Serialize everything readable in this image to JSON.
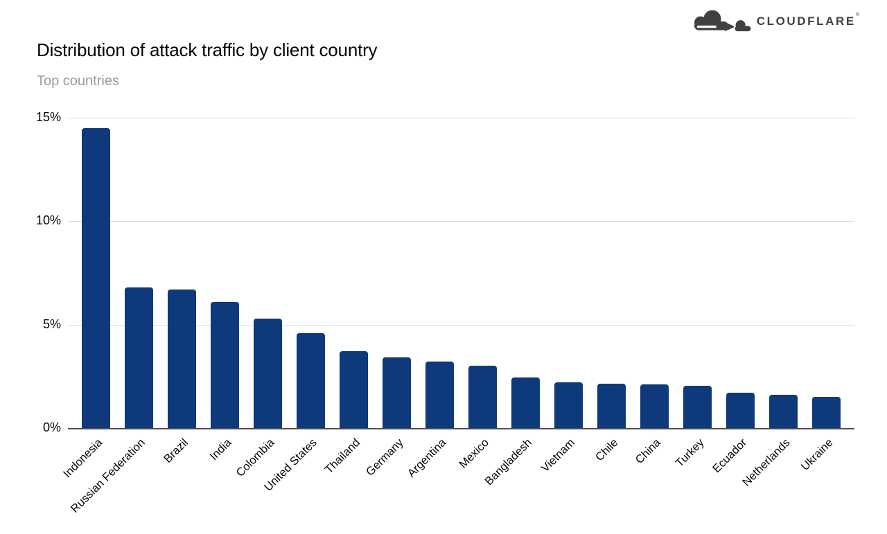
{
  "logo": {
    "brand": "CLOUDFLARE",
    "trademark": "®",
    "color": "#404041"
  },
  "header": {
    "title": "Distribution of attack traffic by client country",
    "subtitle": "Top countries"
  },
  "chart_data": {
    "type": "bar",
    "title": "Distribution of attack traffic by client country",
    "subtitle": "Top countries",
    "categories": [
      "Indonesia",
      "Russian Federation",
      "Brazil",
      "India",
      "Colombia",
      "United States",
      "Thailand",
      "Germany",
      "Argentina",
      "Mexico",
      "Bangladesh",
      "Vietnam",
      "Chile",
      "China",
      "Turkey",
      "Ecuador",
      "Netherlands",
      "Ukraine"
    ],
    "values": [
      14.5,
      6.8,
      6.7,
      6.1,
      5.3,
      4.6,
      3.7,
      3.4,
      3.2,
      3.0,
      2.45,
      2.2,
      2.15,
      2.1,
      2.05,
      1.7,
      1.6,
      1.5
    ],
    "value_unit": "%",
    "xlabel": "",
    "ylabel": "",
    "ylim": [
      0,
      15
    ],
    "y_ticks": [
      {
        "label": "0%",
        "value": 0
      },
      {
        "label": "5%",
        "value": 5
      },
      {
        "label": "10%",
        "value": 10
      },
      {
        "label": "15%",
        "value": 15
      }
    ],
    "grid": "horizontal",
    "legend": "none",
    "colors": {
      "bar": "#0e3a7c",
      "gridline": "#d9d9d9",
      "axis_line": "#4d4d4d",
      "tick_text": "#050505",
      "title_text": "#050505",
      "subtitle_text": "#9a9a9a"
    }
  }
}
